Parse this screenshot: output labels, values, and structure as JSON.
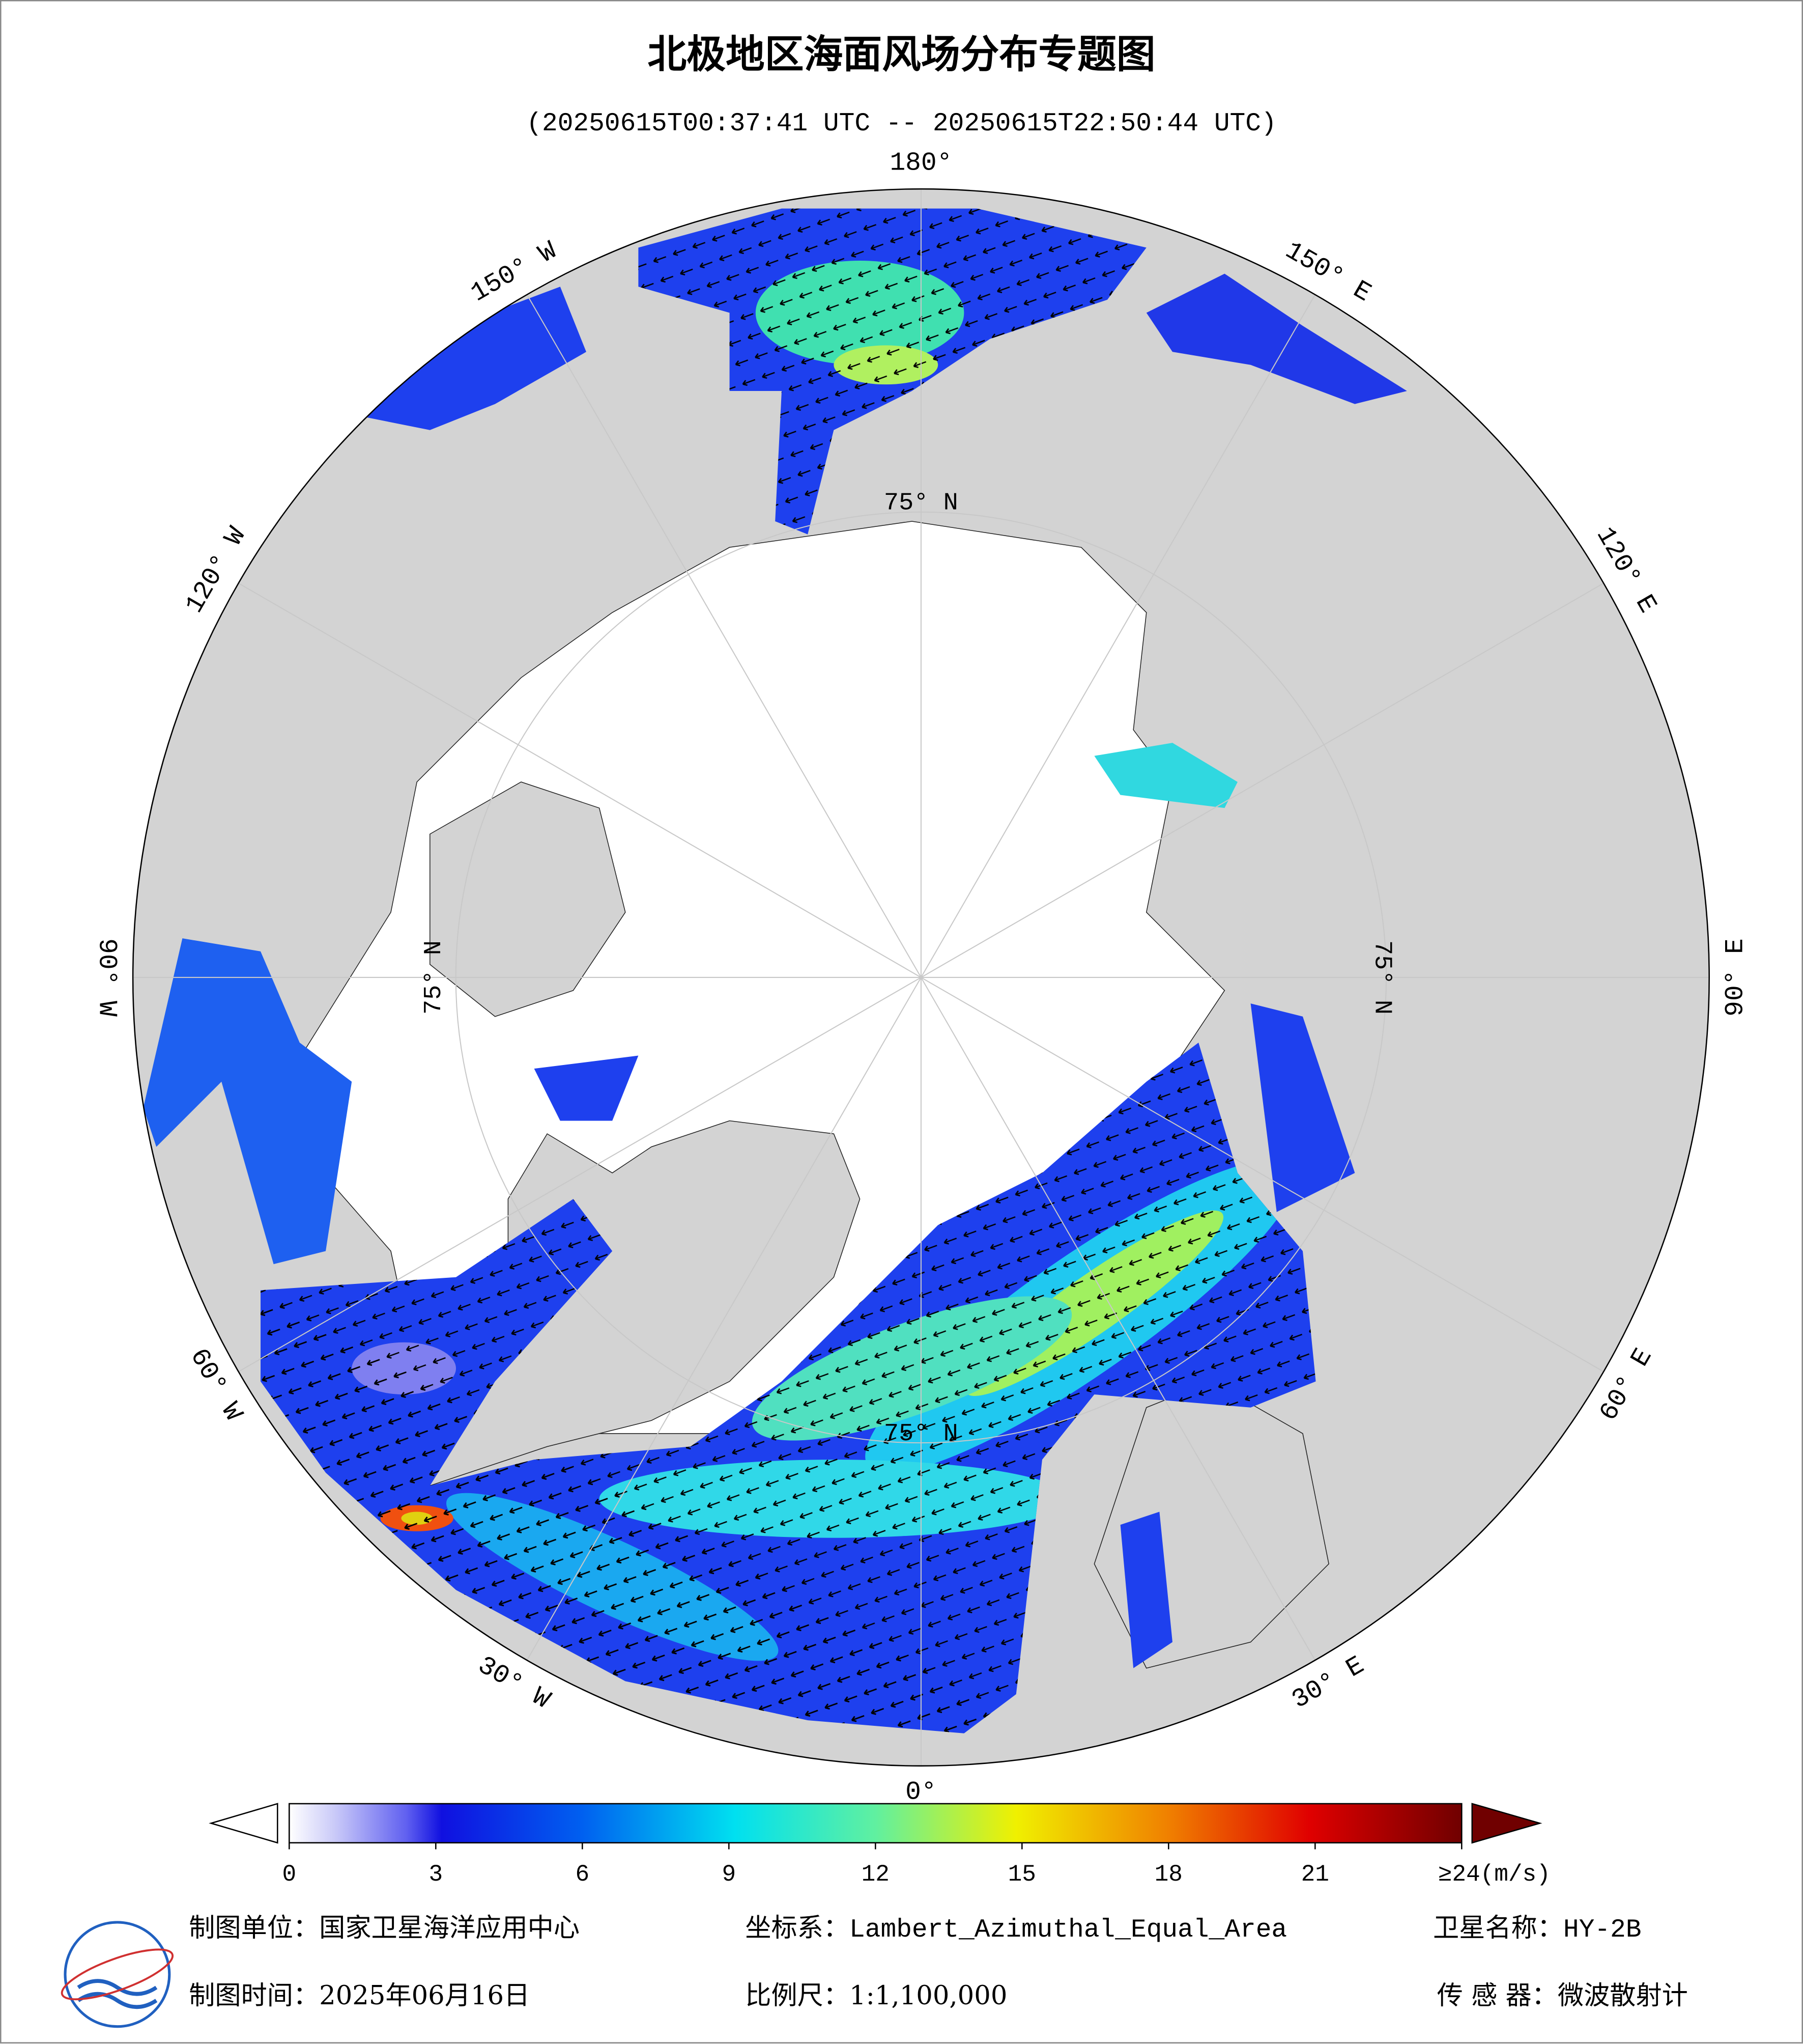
{
  "header": {
    "title": "北极地区海面风场分布专题图",
    "subtitle": "(20250615T00:37:41 UTC -- 20250615T22:50:44 UTC)"
  },
  "graticule": {
    "meridians": [
      {
        "value": 180,
        "label": "180°"
      },
      {
        "value": -150,
        "label": "150° W"
      },
      {
        "value": -120,
        "label": "120° W"
      },
      {
        "value": -90,
        "label": "90° W"
      },
      {
        "value": -60,
        "label": "60° W"
      },
      {
        "value": -30,
        "label": "30° W"
      },
      {
        "value": 0,
        "label": "0°"
      },
      {
        "value": 30,
        "label": "30° E"
      },
      {
        "value": 60,
        "label": "60° E"
      },
      {
        "value": 90,
        "label": "90° E"
      },
      {
        "value": 120,
        "label": "120° E"
      },
      {
        "value": 150,
        "label": "150° E"
      }
    ],
    "parallel": {
      "value": 75,
      "label": "75° N"
    }
  },
  "colorbar": {
    "range": [
      0,
      24
    ],
    "ticks": [
      0,
      3,
      6,
      9,
      12,
      15,
      18,
      21,
      {
        "value": 24,
        "label": "≥24(m/s)"
      }
    ]
  },
  "footer": {
    "unit": "制图单位：国家卫星海洋应用中心",
    "crs": "坐标系：Lambert_Azimuthal_Equal_Area",
    "satellite": "卫星名称：HY-2B",
    "date": "制图时间：2025年06月16日",
    "scale": "比例尺：1:1,100,000",
    "sensor": "传 感 器：微波散射计"
  }
}
